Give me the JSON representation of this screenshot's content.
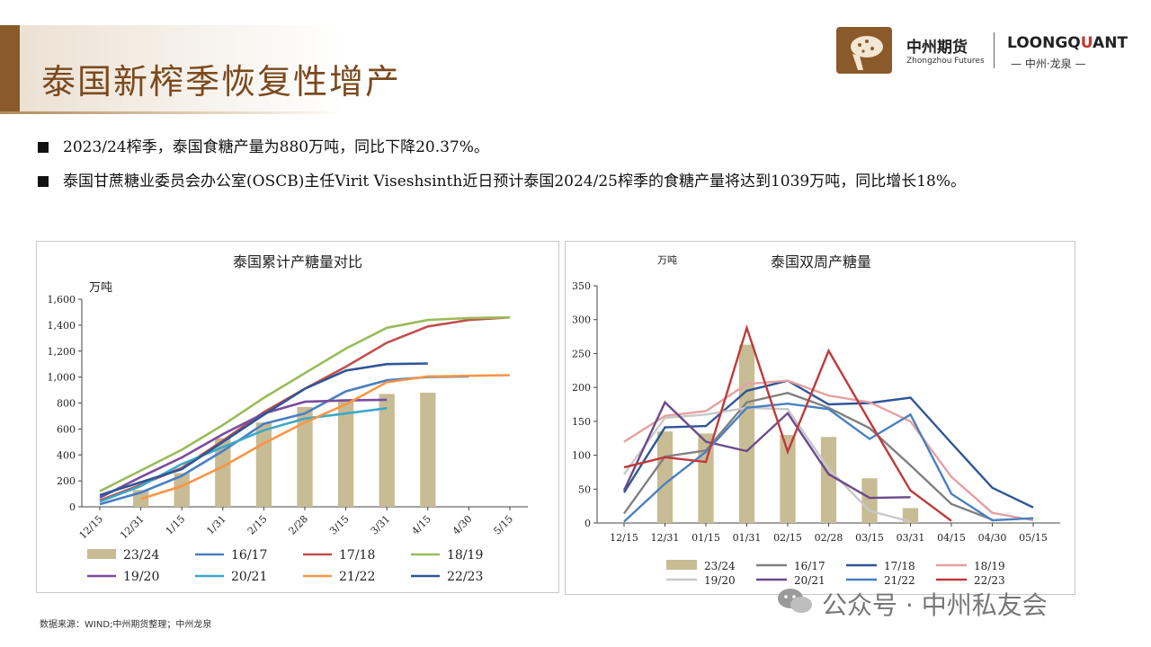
{
  "page": {
    "title": "泰国新榨季恢复性增产",
    "bullets": [
      "2023/24榨季，泰国食糖产量为880万吨，同比下降20.37%。",
      "泰国甘蔗糖业委员会办公室(OSCB)主任Virit Viseshsinth近日预计泰国2024/25榨季的食糖产量将达到1039万吨，同比增长18%。"
    ],
    "source": "数据来源：WIND;中州期货整理；中州龙泉",
    "watermark": "公众号 · 中州私友会"
  },
  "logo": {
    "cn": "中州期货",
    "en": "Zhongzhou Futures",
    "brand_a": "LOONGQ",
    "brand_q": "U",
    "brand_b": "ANT",
    "brand_sub": "— 中州·龙泉 —"
  },
  "chart_data": [
    {
      "type": "bar+line",
      "title": "泰国累计产糖量对比",
      "ylabel": "万吨",
      "ylim": [
        0,
        1600
      ],
      "yticks": [
        "0",
        "200",
        "400",
        "600",
        "800",
        "1,000",
        "1,200",
        "1,400",
        "1,600"
      ],
      "categories": [
        "12/15",
        "12/31",
        "1/15",
        "1/31",
        "2/15",
        "2/28",
        "3/15",
        "3/31",
        "4/15",
        "4/30",
        "5/15"
      ],
      "bar_series": {
        "name": "23/24",
        "color": "#c8bc94",
        "values": [
          null,
          130,
          260,
          530,
          650,
          770,
          830,
          870,
          880,
          null,
          null
        ]
      },
      "series": [
        {
          "name": "16/17",
          "color": "#4a7fc1",
          "values": [
            20,
            110,
            240,
            430,
            640,
            720,
            890,
            975,
            1000,
            1005,
            null
          ]
        },
        {
          "name": "17/18",
          "color": "#c0504d",
          "values": [
            50,
            170,
            300,
            510,
            730,
            910,
            1080,
            1265,
            1390,
            1440,
            1460
          ]
        },
        {
          "name": "18/19",
          "color": "#9bbb59",
          "values": [
            120,
            280,
            440,
            630,
            840,
            1030,
            1220,
            1380,
            1440,
            1455,
            1460
          ]
        },
        {
          "name": "19/20",
          "color": "#7a4c9e",
          "values": [
            70,
            230,
            380,
            560,
            720,
            810,
            820,
            825,
            null,
            null,
            null
          ]
        },
        {
          "name": "20/21",
          "color": "#3ba8c8",
          "values": [
            40,
            160,
            330,
            460,
            590,
            680,
            720,
            760,
            null,
            null,
            null
          ]
        },
        {
          "name": "21/22",
          "color": "#f79646",
          "values": [
            null,
            60,
            160,
            310,
            490,
            650,
            790,
            960,
            1005,
            1010,
            1015
          ]
        },
        {
          "name": "22/23",
          "color": "#2f5597",
          "values": [
            90,
            190,
            290,
            500,
            710,
            910,
            1050,
            1100,
            1105,
            null,
            null
          ]
        }
      ]
    },
    {
      "type": "bar+line",
      "title": "泰国双周产糖量",
      "ylabel": "万吨",
      "ylim": [
        0,
        350
      ],
      "yticks": [
        "0",
        "50",
        "100",
        "150",
        "200",
        "250",
        "300",
        "350"
      ],
      "categories": [
        "12/15",
        "12/31",
        "01/15",
        "01/31",
        "02/15",
        "02/28",
        "03/15",
        "03/31",
        "04/15",
        "04/30",
        "05/15"
      ],
      "bar_series": {
        "name": "23/24",
        "color": "#c8bc94",
        "values": [
          null,
          135,
          132,
          263,
          130,
          127,
          66,
          22,
          null,
          null,
          null
        ]
      },
      "series": [
        {
          "name": "16/17",
          "color": "#808080",
          "values": [
            14,
            98,
            107,
            178,
            192,
            170,
            140,
            85,
            28,
            5,
            null
          ]
        },
        {
          "name": "17/18",
          "color": "#2f5597",
          "values": [
            45,
            141,
            143,
            195,
            210,
            175,
            177,
            185,
            118,
            52,
            23
          ]
        },
        {
          "name": "18/19",
          "color": "#e6a0a0",
          "values": [
            120,
            158,
            165,
            205,
            210,
            188,
            178,
            150,
            68,
            15,
            4
          ]
        },
        {
          "name": "19/20",
          "color": "#c8c8c8",
          "values": [
            72,
            155,
            160,
            170,
            168,
            80,
            18,
            2,
            null,
            null,
            null
          ]
        },
        {
          "name": "20/21",
          "color": "#6b4a8a",
          "values": [
            48,
            178,
            120,
            106,
            162,
            72,
            37,
            38,
            null,
            null,
            null
          ]
        },
        {
          "name": "21/22",
          "color": "#4a7fc1",
          "values": [
            2,
            58,
            105,
            170,
            176,
            168,
            124,
            160,
            43,
            4,
            7
          ]
        },
        {
          "name": "22/23",
          "color": "#c0393b",
          "values": [
            82,
            97,
            90,
            288,
            105,
            254,
            150,
            48,
            3,
            null,
            null
          ]
        }
      ]
    }
  ]
}
